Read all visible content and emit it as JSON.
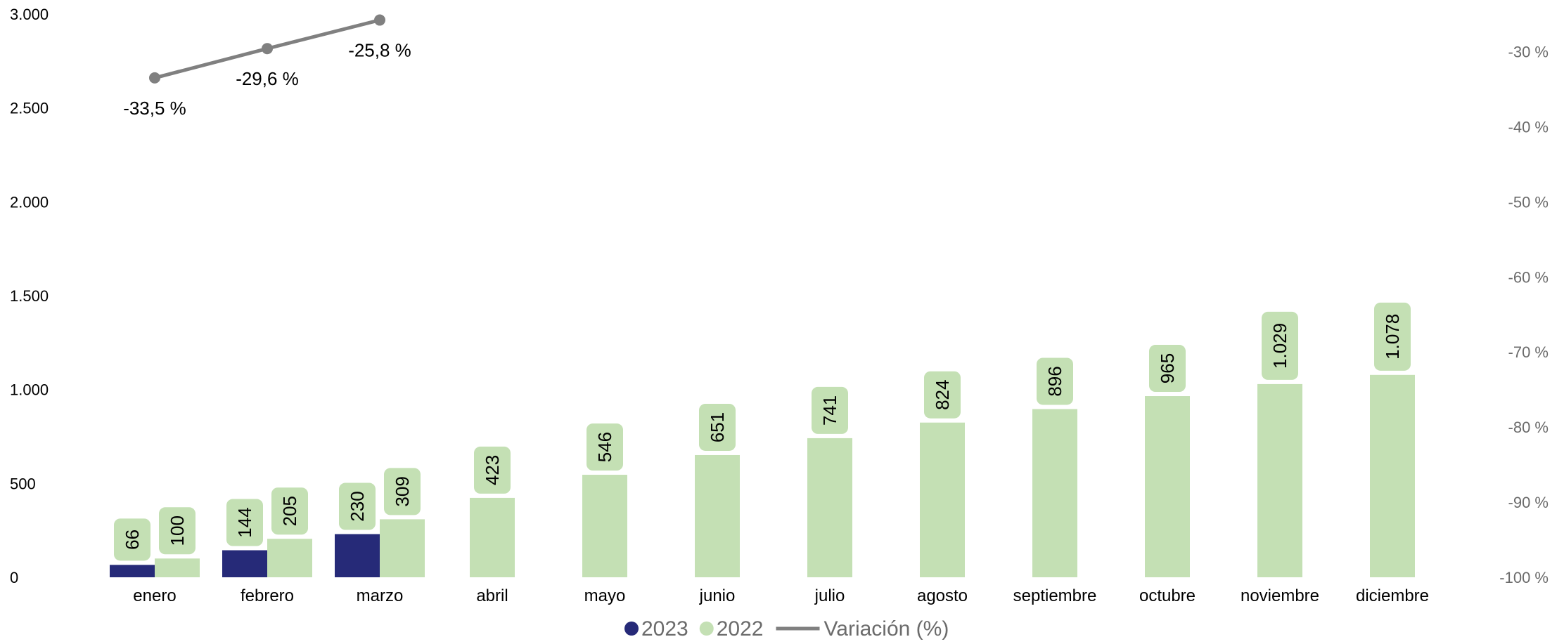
{
  "chart_data": {
    "type": "bar",
    "categories": [
      "enero",
      "febrero",
      "marzo",
      "abril",
      "mayo",
      "junio",
      "julio",
      "agosto",
      "septiembre",
      "octubre",
      "noviembre",
      "diciembre"
    ],
    "series": [
      {
        "name": "2023",
        "color": "#262a78",
        "values": [
          66,
          144,
          230,
          null,
          null,
          null,
          null,
          null,
          null,
          null,
          null,
          null
        ]
      },
      {
        "name": "2022",
        "color": "#c4e0b4",
        "values": [
          100,
          205,
          309,
          423,
          546,
          651,
          741,
          824,
          896,
          965,
          1029,
          1078
        ]
      }
    ],
    "line_series": {
      "name": "Variación (%)",
      "color": "#808080",
      "axis": "right",
      "values": [
        -33.5,
        -29.6,
        -25.8,
        null,
        null,
        null,
        null,
        null,
        null,
        null,
        null,
        null
      ]
    },
    "data_labels": {
      "2023": [
        "66",
        "144",
        "230"
      ],
      "2022": [
        "100",
        "205",
        "309",
        "423",
        "546",
        "651",
        "741",
        "824",
        "896",
        "965",
        "1.029",
        "1.078"
      ],
      "variation": [
        "-33,5 %",
        "-29,6 %",
        "-25,8 %"
      ]
    },
    "y_left": {
      "range": [
        0,
        3000
      ],
      "ticks": [
        0,
        500,
        1000,
        1500,
        2000,
        2500,
        3000
      ],
      "tick_labels": [
        "0",
        "500",
        "1.000",
        "1.500",
        "2.000",
        "2.500",
        "3.000"
      ]
    },
    "y_right": {
      "range": [
        -100,
        -25
      ],
      "ticks": [
        -100,
        -90,
        -80,
        -70,
        -60,
        -50,
        -40,
        -30
      ],
      "tick_labels": [
        "-100 %",
        "-90 %",
        "-80 %",
        "-70 %",
        "-60 %",
        "-50 %",
        "-40 %",
        "-30 %"
      ]
    },
    "legend": {
      "position": "bottom",
      "items": [
        {
          "label": "2023",
          "kind": "dot",
          "color": "#262a78"
        },
        {
          "label": "2022",
          "kind": "dot",
          "color": "#c4e0b4"
        },
        {
          "label": "Variación (%)",
          "kind": "line",
          "color": "#808080"
        }
      ]
    },
    "grid": false,
    "label_box_color": "#c4e0b4"
  }
}
